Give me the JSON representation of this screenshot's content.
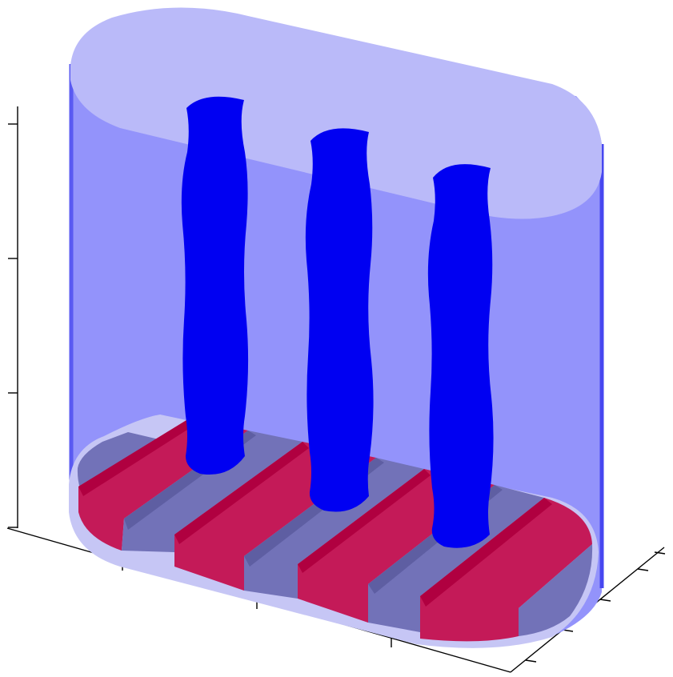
{
  "figure": {
    "colors": {
      "background": "#ffffff",
      "axis": "#000000",
      "tank_body": "#9393fb",
      "tank_top": "#babaf9",
      "tank_edge": "#4747f0",
      "tank_base_rim": "#c6c6f5",
      "heater_strip": "#c41a58",
      "heater_strip_dark": "#b00040",
      "gap_strip": "#7272b8",
      "gap_strip_dark": "#5e5ea2",
      "column": "#0000f2"
    },
    "icons": {
      "tank": "rounded-box-container",
      "column": "vertical-cylinder",
      "base_pattern": "striped-heater-base"
    },
    "columns_count": 3,
    "heater_strips_count": 5,
    "grid": false,
    "axis_tick_labels": []
  }
}
